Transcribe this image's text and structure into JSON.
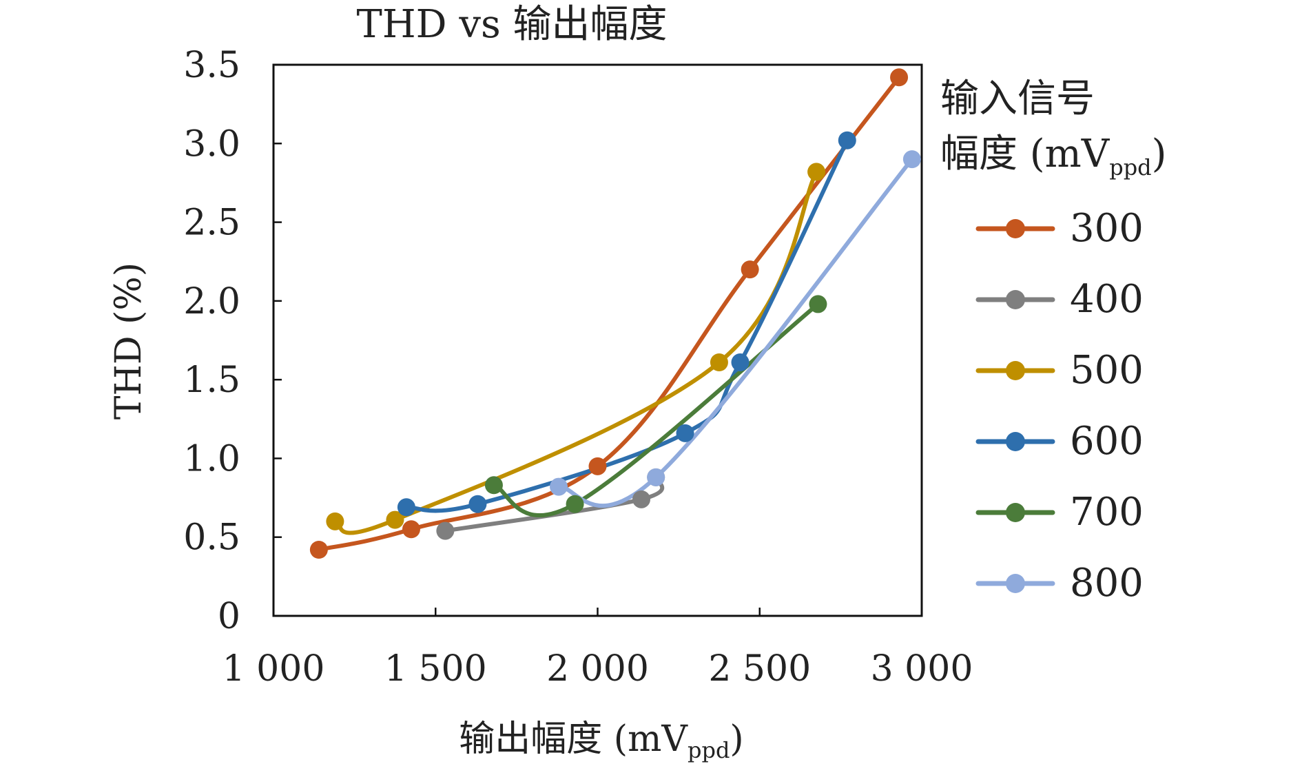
{
  "chart_data": {
    "type": "line",
    "title": "THD vs 输出幅度",
    "xlabel": "输出幅度 (mV",
    "xlabel_sub": "ppd",
    "xlabel_close": ")",
    "ylabel": "THD (%)",
    "xlim": [
      1000,
      3000
    ],
    "ylim": [
      0,
      3.5
    ],
    "x_ticks": [
      1000,
      1500,
      2000,
      2500,
      3000
    ],
    "x_tick_labels": [
      "1 000",
      "1 500",
      "2 000",
      "2 500",
      "3 000"
    ],
    "y_ticks": [
      0,
      0.5,
      1.0,
      1.5,
      2.0,
      2.5,
      3.0,
      3.5
    ],
    "y_tick_labels": [
      "0",
      "0.5",
      "1.0",
      "1.5",
      "2.0",
      "2.5",
      "3.0",
      "3.5"
    ],
    "grid": false,
    "legend": {
      "placement": "right",
      "title_line1": "输入信号",
      "title_line2": "幅度 (mV",
      "title_sub": "ppd",
      "title_close": ")"
    },
    "series": [
      {
        "name": "300",
        "color": "#c5561e",
        "x": [
          1140,
          1425,
          2000,
          2470,
          2930
        ],
        "y": [
          0.42,
          0.55,
          0.95,
          2.2,
          3.42
        ]
      },
      {
        "name": "400",
        "color": "#7f7f7f",
        "x": [
          1530,
          2135,
          2180
        ],
        "y": [
          0.54,
          0.74,
          0.88
        ]
      },
      {
        "name": "500",
        "color": "#bf8f00",
        "x": [
          1190,
          1375,
          2375,
          2675
        ],
        "y": [
          0.6,
          0.61,
          1.61,
          2.82
        ]
      },
      {
        "name": "600",
        "color": "#2e6fad",
        "x": [
          1410,
          1630,
          2270,
          2440,
          2770
        ],
        "y": [
          0.69,
          0.71,
          1.16,
          1.61,
          3.02
        ]
      },
      {
        "name": "700",
        "color": "#4b7c3a",
        "x": [
          1680,
          1930,
          2680
        ],
        "y": [
          0.83,
          0.71,
          1.98
        ]
      },
      {
        "name": "800",
        "color": "#8faadc",
        "x": [
          1880,
          2180,
          2970
        ],
        "y": [
          0.82,
          0.88,
          2.9
        ]
      }
    ]
  }
}
